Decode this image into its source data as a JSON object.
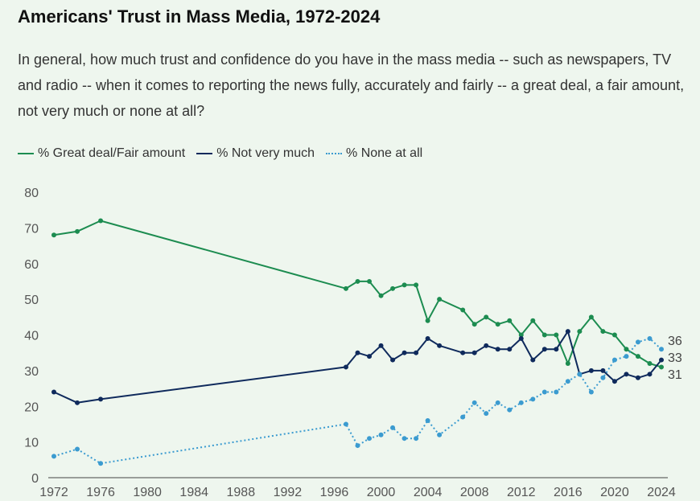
{
  "title": "Americans' Trust in Mass Media, 1972-2024",
  "subtitle": "In general, how much trust and confidence do you have in the mass media -- such as newspapers, TV and radio -- when it comes to reporting the news fully, accurately and fairly -- a great deal, a fair amount, not very much or none at all?",
  "legend": [
    {
      "label": "% Great deal/Fair amount",
      "color": "#1c8c50",
      "style": "solid"
    },
    {
      "label": "% Not very much",
      "color": "#0f2a5c",
      "style": "solid"
    },
    {
      "label": "% None at all",
      "color": "#3b9bd0",
      "style": "dotted"
    }
  ],
  "chart_data": {
    "type": "line",
    "xlim": [
      1972,
      2024
    ],
    "ylim": [
      0,
      80
    ],
    "yticks": [
      0,
      10,
      20,
      30,
      40,
      50,
      60,
      70,
      80
    ],
    "xticks": [
      1972,
      1976,
      1980,
      1984,
      1988,
      1992,
      1996,
      2000,
      2004,
      2008,
      2012,
      2016,
      2020,
      2024
    ],
    "grid": false,
    "legend_position": "top-left",
    "series": [
      {
        "name": "% Great deal/Fair amount",
        "color": "#1c8c50",
        "style": "solid",
        "end_label": "31",
        "points": [
          [
            1972,
            68
          ],
          [
            1974,
            69
          ],
          [
            1976,
            72
          ],
          [
            1997,
            53
          ],
          [
            1998,
            55
          ],
          [
            1999,
            55
          ],
          [
            2000,
            51
          ],
          [
            2001,
            53
          ],
          [
            2002,
            54
          ],
          [
            2003,
            54
          ],
          [
            2004,
            44
          ],
          [
            2005,
            50
          ],
          [
            2007,
            47
          ],
          [
            2008,
            43
          ],
          [
            2009,
            45
          ],
          [
            2010,
            43
          ],
          [
            2011,
            44
          ],
          [
            2012,
            40
          ],
          [
            2013,
            44
          ],
          [
            2014,
            40
          ],
          [
            2015,
            40
          ],
          [
            2016,
            32
          ],
          [
            2017,
            41
          ],
          [
            2018,
            45
          ],
          [
            2019,
            41
          ],
          [
            2020,
            40
          ],
          [
            2021,
            36
          ],
          [
            2022,
            34
          ],
          [
            2023,
            32
          ],
          [
            2024,
            31
          ]
        ]
      },
      {
        "name": "% Not very much",
        "color": "#0f2a5c",
        "style": "solid",
        "end_label": "33",
        "points": [
          [
            1972,
            24
          ],
          [
            1974,
            21
          ],
          [
            1976,
            22
          ],
          [
            1997,
            31
          ],
          [
            1998,
            35
          ],
          [
            1999,
            34
          ],
          [
            2000,
            37
          ],
          [
            2001,
            33
          ],
          [
            2002,
            35
          ],
          [
            2003,
            35
          ],
          [
            2004,
            39
          ],
          [
            2005,
            37
          ],
          [
            2007,
            35
          ],
          [
            2008,
            35
          ],
          [
            2009,
            37
          ],
          [
            2010,
            36
          ],
          [
            2011,
            36
          ],
          [
            2012,
            39
          ],
          [
            2013,
            33
          ],
          [
            2014,
            36
          ],
          [
            2015,
            36
          ],
          [
            2016,
            41
          ],
          [
            2017,
            29
          ],
          [
            2018,
            30
          ],
          [
            2019,
            30
          ],
          [
            2020,
            27
          ],
          [
            2021,
            29
          ],
          [
            2022,
            28
          ],
          [
            2023,
            29
          ],
          [
            2024,
            33
          ]
        ]
      },
      {
        "name": "% None at all",
        "color": "#3b9bd0",
        "style": "dotted",
        "end_label": "36",
        "points": [
          [
            1972,
            6
          ],
          [
            1974,
            8
          ],
          [
            1976,
            4
          ],
          [
            1997,
            15
          ],
          [
            1998,
            9
          ],
          [
            1999,
            11
          ],
          [
            2000,
            12
          ],
          [
            2001,
            14
          ],
          [
            2002,
            11
          ],
          [
            2003,
            11
          ],
          [
            2004,
            16
          ],
          [
            2005,
            12
          ],
          [
            2007,
            17
          ],
          [
            2008,
            21
          ],
          [
            2009,
            18
          ],
          [
            2010,
            21
          ],
          [
            2011,
            19
          ],
          [
            2012,
            21
          ],
          [
            2013,
            22
          ],
          [
            2014,
            24
          ],
          [
            2015,
            24
          ],
          [
            2016,
            27
          ],
          [
            2017,
            29
          ],
          [
            2018,
            24
          ],
          [
            2019,
            28
          ],
          [
            2020,
            33
          ],
          [
            2021,
            34
          ],
          [
            2022,
            38
          ],
          [
            2023,
            39
          ],
          [
            2024,
            36
          ]
        ]
      }
    ]
  }
}
